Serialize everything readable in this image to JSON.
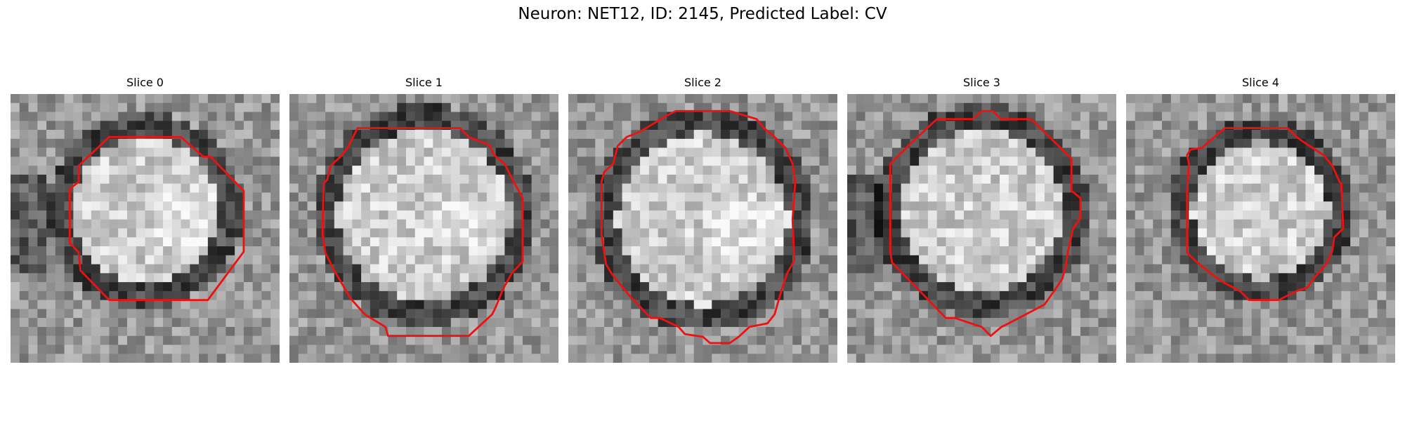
{
  "figure": {
    "title": "Neuron: NET12, ID: 2145, Predicted Label: CV",
    "contour_color": "#ee1111"
  },
  "panels": [
    {
      "title": "Slice 0"
    },
    {
      "title": "Slice 1"
    },
    {
      "title": "Slice 2"
    },
    {
      "title": "Slice 3"
    },
    {
      "title": "Slice 4"
    }
  ]
}
